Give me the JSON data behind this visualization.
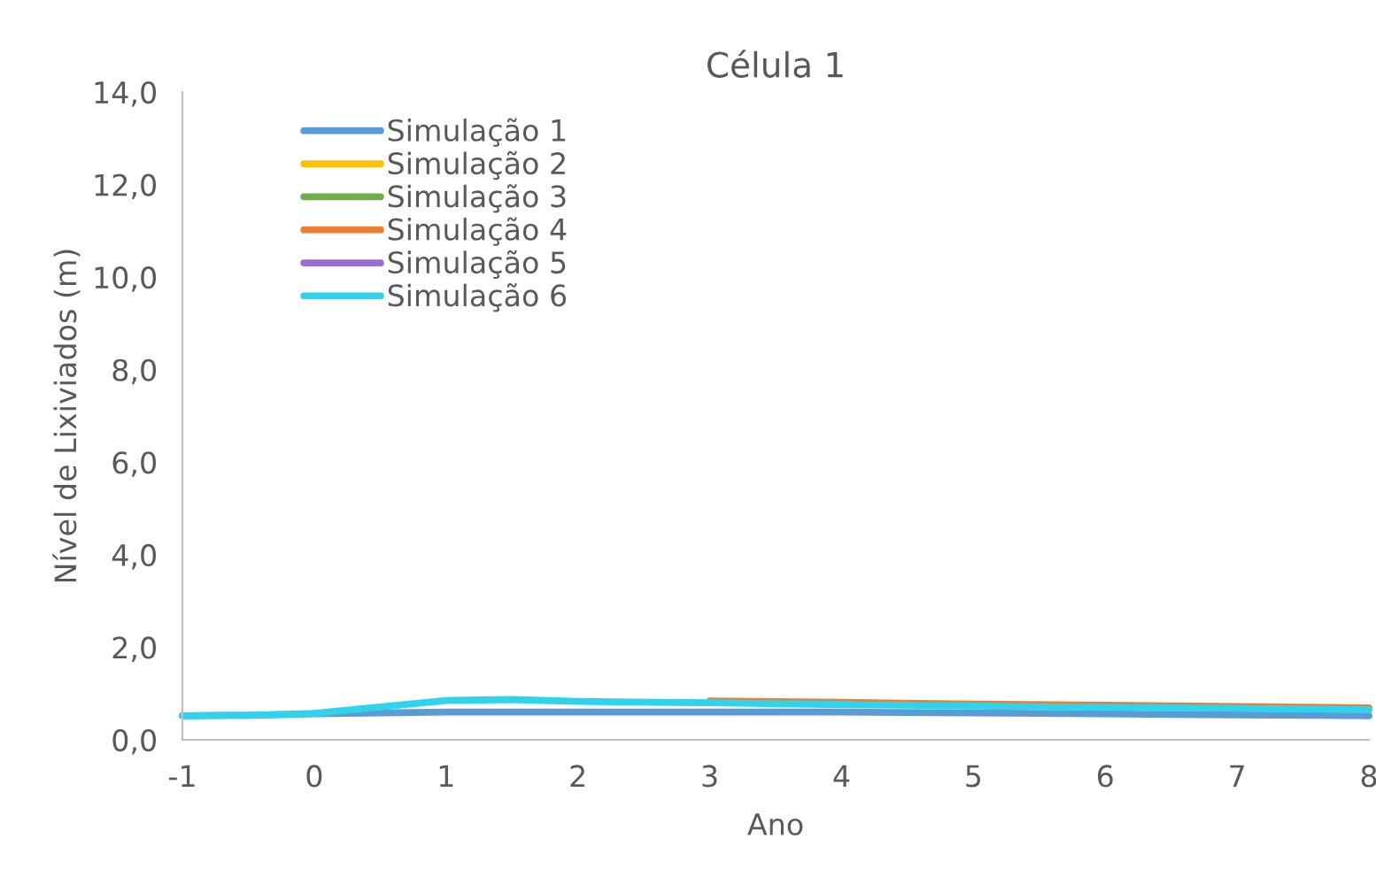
{
  "chart_data": {
    "type": "line",
    "title": "Célula 1",
    "xlabel": "Ano",
    "ylabel": "Nível de Lixiviados (m)",
    "x": [
      -1,
      -0.5,
      0,
      0.5,
      1,
      1.5,
      2,
      3,
      4,
      5,
      6,
      7,
      8
    ],
    "series": [
      {
        "name": "Simulação 1",
        "color": "#5b9bd5",
        "values": [
          0.52,
          0.53,
          0.56,
          0.58,
          0.6,
          0.6,
          0.6,
          0.6,
          0.6,
          0.58,
          0.56,
          0.54,
          0.52
        ]
      },
      {
        "name": "Simulação 2",
        "color": "#ffc000",
        "values": [
          null,
          null,
          null,
          null,
          null,
          null,
          null,
          null,
          null,
          null,
          null,
          null,
          null
        ]
      },
      {
        "name": "Simulação 3",
        "color": "#70ad47",
        "values": [
          null,
          null,
          null,
          null,
          null,
          null,
          null,
          null,
          null,
          null,
          null,
          null,
          null
        ]
      },
      {
        "name": "Simulação 4",
        "color": "#ed7d31",
        "values": [
          null,
          null,
          null,
          null,
          null,
          null,
          null,
          0.84,
          0.81,
          0.77,
          0.75,
          0.72,
          0.69
        ]
      },
      {
        "name": "Simulação 5",
        "color": "#9e6bd6",
        "values": [
          null,
          null,
          null,
          null,
          null,
          null,
          null,
          null,
          null,
          null,
          null,
          null,
          null
        ]
      },
      {
        "name": "Simulação 6",
        "color": "#2fd4ec",
        "values": [
          0.52,
          0.53,
          0.57,
          0.71,
          0.85,
          0.87,
          0.83,
          0.8,
          0.76,
          0.73,
          0.7,
          0.68,
          0.65
        ]
      }
    ],
    "xlim": [
      -1,
      8
    ],
    "xticks": [
      -1,
      0,
      1,
      2,
      3,
      4,
      5,
      6,
      7,
      8
    ],
    "ylim": [
      0,
      14
    ],
    "yticks": [
      {
        "value": 0,
        "label": "0,0"
      },
      {
        "value": 2,
        "label": "2,0"
      },
      {
        "value": 4,
        "label": "4,0"
      },
      {
        "value": 6,
        "label": "6,0"
      },
      {
        "value": 8,
        "label": "8,0"
      },
      {
        "value": 10,
        "label": "10,0"
      },
      {
        "value": 12,
        "label": "12,0"
      },
      {
        "value": 14,
        "label": "14,0"
      }
    ],
    "grid": false,
    "legend": "top left",
    "line_style": "solid",
    "marker": "none"
  }
}
